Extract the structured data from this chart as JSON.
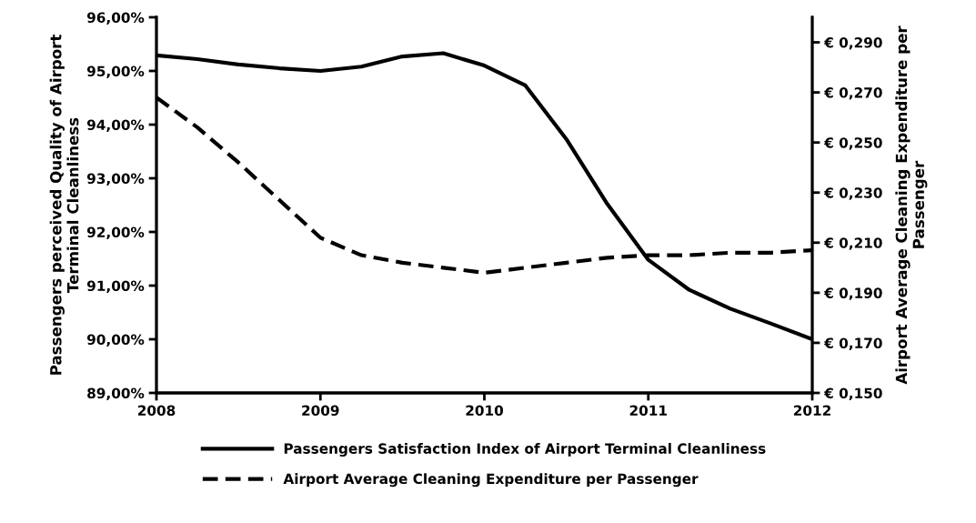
{
  "chart_data": {
    "type": "line",
    "ylabel": "Passengers perceived Quality of Airport Terminal Cleanliness",
    "y2label": "Airport Average Cleaning Expenditure per Passenger",
    "x": [
      2008,
      2008.25,
      2008.5,
      2008.75,
      2009,
      2009.25,
      2009.5,
      2009.75,
      2010,
      2010.25,
      2010.5,
      2010.75,
      2011,
      2011.25,
      2011.5,
      2011.75,
      2012
    ],
    "xlim": [
      2008,
      2012
    ],
    "xticks": [
      2008,
      2009,
      2010,
      2011,
      2012
    ],
    "ylim": [
      89,
      96
    ],
    "yticks": [
      {
        "value": 89,
        "label": "89,00%"
      },
      {
        "value": 90,
        "label": "90,00%"
      },
      {
        "value": 91,
        "label": "91,00%"
      },
      {
        "value": 92,
        "label": "92,00%"
      },
      {
        "value": 93,
        "label": "93,00%"
      },
      {
        "value": 94,
        "label": "94,00%"
      },
      {
        "value": 95,
        "label": "95,00%"
      },
      {
        "value": 96,
        "label": "96,00%"
      }
    ],
    "y2lim": [
      0.15,
      0.3
    ],
    "y2ticks": [
      {
        "value": 0.15,
        "label": "€ 0,150"
      },
      {
        "value": 0.17,
        "label": "€ 0,170"
      },
      {
        "value": 0.19,
        "label": "€ 0,190"
      },
      {
        "value": 0.21,
        "label": "€ 0,210"
      },
      {
        "value": 0.23,
        "label": "€ 0,230"
      },
      {
        "value": 0.25,
        "label": "€ 0,250"
      },
      {
        "value": 0.27,
        "label": "€ 0,270"
      },
      {
        "value": 0.29,
        "label": "€ 0,290"
      }
    ],
    "series": [
      {
        "name": "Passengers Satisfaction Index of Airport Terminal Cleanliness",
        "color": "#000000",
        "line_style": "solid",
        "values": [
          95.29,
          95.22,
          95.12,
          95.05,
          95.0,
          95.08,
          95.27,
          95.33,
          95.1,
          94.73,
          93.73,
          92.52,
          91.48,
          90.92,
          90.57,
          90.29,
          90.0
        ]
      },
      {
        "name": "Airport Average Cleaning Expenditure per Passenger",
        "color": "#000000",
        "line_style": "dashed",
        "axis": "y2",
        "values": [
          0.268,
          0.256,
          0.242,
          0.227,
          0.212,
          0.205,
          0.202,
          0.2,
          0.198,
          0.2,
          0.202,
          0.204,
          0.205,
          0.205,
          0.206,
          0.206,
          0.207
        ]
      }
    ],
    "grid": false,
    "legend": "bottom",
    "marker": "none"
  }
}
